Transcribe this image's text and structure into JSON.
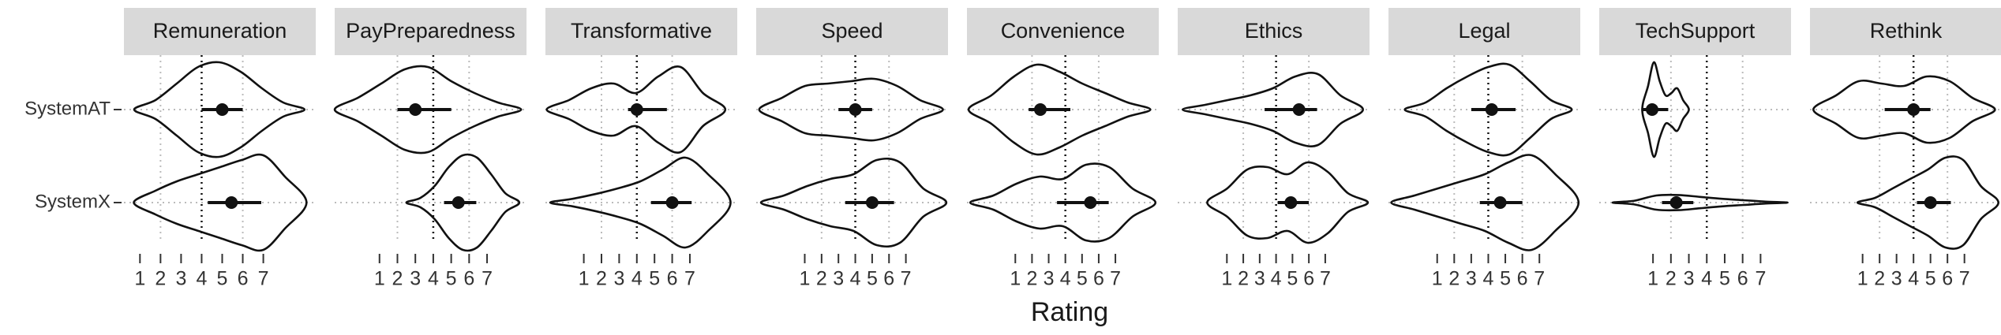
{
  "chart_data": {
    "type": "violin",
    "x_label": "Rating",
    "categories": [
      "SystemAT",
      "SystemX"
    ],
    "xticks": [
      1,
      2,
      3,
      4,
      5,
      6,
      7
    ],
    "grid_x": [
      2,
      6
    ],
    "reference_x": 4,
    "facets": [
      {
        "title": "Remuneration",
        "xlim": [
          0.22,
          9.55
        ],
        "violins": [
          {
            "range": [
              0.72,
              9.0
            ],
            "density": [
              0,
              0.2,
              0.55,
              0.9,
              1.0,
              0.8,
              0.45,
              0.15,
              0
            ],
            "point": 5.0,
            "interval": [
              4.0,
              6.0
            ]
          },
          {
            "range": [
              0.7,
              9.1
            ],
            "density": [
              0,
              0.25,
              0.45,
              0.6,
              0.75,
              0.9,
              1.0,
              0.55,
              0
            ],
            "point": 5.45,
            "interval": [
              4.3,
              6.9
            ]
          }
        ]
      },
      {
        "title": "PayPreparedness",
        "xlim": [
          -1.5,
          9.2
        ],
        "violins": [
          {
            "range": [
              -1.5,
              8.9
            ],
            "density": [
              0,
              0.25,
              0.55,
              0.85,
              0.9,
              0.6,
              0.35,
              0.15,
              0
            ],
            "point": 3.0,
            "interval": [
              2.0,
              5.0
            ]
          },
          {
            "range": [
              2.5,
              8.8
            ],
            "density": [
              0,
              0.1,
              0.35,
              0.75,
              1.0,
              0.95,
              0.6,
              0.2,
              0
            ],
            "point": 5.4,
            "interval": [
              4.6,
              6.4
            ]
          }
        ]
      },
      {
        "title": "Transformative",
        "xlim": [
          -1.17,
          9.68
        ],
        "violins": [
          {
            "range": [
              -1.1,
              9.0
            ],
            "density": [
              0,
              0.2,
              0.45,
              0.55,
              0.35,
              0.7,
              0.9,
              0.35,
              0
            ],
            "point": 4.0,
            "interval": [
              3.5,
              5.7
            ]
          },
          {
            "range": [
              -0.9,
              9.3
            ],
            "density": [
              0,
              0.08,
              0.18,
              0.3,
              0.45,
              0.7,
              0.95,
              0.6,
              0
            ],
            "point": 6.0,
            "interval": [
              4.8,
              7.1
            ]
          }
        ]
      },
      {
        "title": "Speed",
        "xlim": [
          -1.88,
          9.5
        ],
        "violins": [
          {
            "range": [
              -1.7,
              9.2
            ],
            "density": [
              0,
              0.25,
              0.5,
              0.55,
              0.6,
              0.65,
              0.5,
              0.2,
              0
            ],
            "point": 4.0,
            "interval": [
              3.0,
              5.0
            ]
          },
          {
            "range": [
              -1.6,
              9.4
            ],
            "density": [
              0,
              0.15,
              0.35,
              0.5,
              0.6,
              0.9,
              0.85,
              0.3,
              0
            ],
            "point": 5.0,
            "interval": [
              3.4,
              6.3
            ]
          }
        ]
      },
      {
        "title": "Convenience",
        "xlim": [
          -1.9,
          9.6
        ],
        "violins": [
          {
            "range": [
              -1.8,
              9.1
            ],
            "density": [
              0,
              0.3,
              0.7,
              0.95,
              0.8,
              0.55,
              0.35,
              0.15,
              0
            ],
            "point": 2.5,
            "interval": [
              1.8,
              4.3
            ]
          },
          {
            "range": [
              -1.7,
              9.4
            ],
            "density": [
              0,
              0.15,
              0.4,
              0.55,
              0.5,
              0.8,
              0.75,
              0.3,
              0
            ],
            "point": 5.5,
            "interval": [
              3.5,
              6.6
            ]
          }
        ]
      },
      {
        "title": "Ethics",
        "xlim": [
          -2.0,
          9.7
        ],
        "violins": [
          {
            "range": [
              -1.7,
              9.3
            ],
            "density": [
              0,
              0.1,
              0.2,
              0.3,
              0.45,
              0.7,
              0.75,
              0.3,
              0
            ],
            "point": 5.4,
            "interval": [
              3.3,
              6.5
            ]
          },
          {
            "range": [
              -0.2,
              9.6
            ],
            "density": [
              0,
              0.3,
              0.7,
              0.75,
              0.6,
              0.85,
              0.65,
              0.2,
              0
            ],
            "point": 4.9,
            "interval": [
              4.1,
              6.0
            ]
          }
        ]
      },
      {
        "title": "Legal",
        "xlim": [
          -1.86,
          9.4
        ],
        "violins": [
          {
            "range": [
              -0.9,
              8.9
            ],
            "density": [
              0,
              0.15,
              0.45,
              0.7,
              0.9,
              0.95,
              0.6,
              0.2,
              0
            ],
            "point": 4.2,
            "interval": [
              3.0,
              5.6
            ]
          },
          {
            "range": [
              -1.7,
              9.3
            ],
            "density": [
              0,
              0.15,
              0.3,
              0.45,
              0.6,
              0.85,
              1.0,
              0.6,
              0
            ],
            "point": 4.7,
            "interval": [
              3.5,
              6.0
            ]
          }
        ]
      },
      {
        "title": "TechSupport",
        "xlim": [
          -2.0,
          8.7
        ],
        "violins": [
          {
            "range": [
              0.4,
              3.0
            ],
            "density": [
              0,
              0.5,
              1.0,
              0.6,
              0.3,
              0.35,
              0.45,
              0.2,
              0
            ],
            "point": 0.95,
            "interval": [
              0.35,
              1.85
            ]
          },
          {
            "range": [
              -1.25,
              8.5
            ],
            "density": [
              0,
              0.04,
              0.15,
              0.16,
              0.12,
              0.08,
              0.05,
              0.02,
              0
            ],
            "point": 2.3,
            "interval": [
              1.5,
              3.25
            ]
          }
        ]
      },
      {
        "title": "Rethink",
        "xlim": [
          -2.1,
          9.2
        ],
        "violins": [
          {
            "range": [
              -1.9,
              8.8
            ],
            "density": [
              0,
              0.3,
              0.6,
              0.55,
              0.5,
              0.7,
              0.6,
              0.25,
              0
            ],
            "point": 4.0,
            "interval": [
              2.3,
              5.0
            ]
          },
          {
            "range": [
              0.7,
              9.0
            ],
            "density": [
              0,
              0.1,
              0.3,
              0.5,
              0.7,
              0.95,
              0.9,
              0.35,
              0
            ],
            "point": 5.0,
            "interval": [
              4.2,
              6.2
            ]
          }
        ]
      }
    ]
  }
}
